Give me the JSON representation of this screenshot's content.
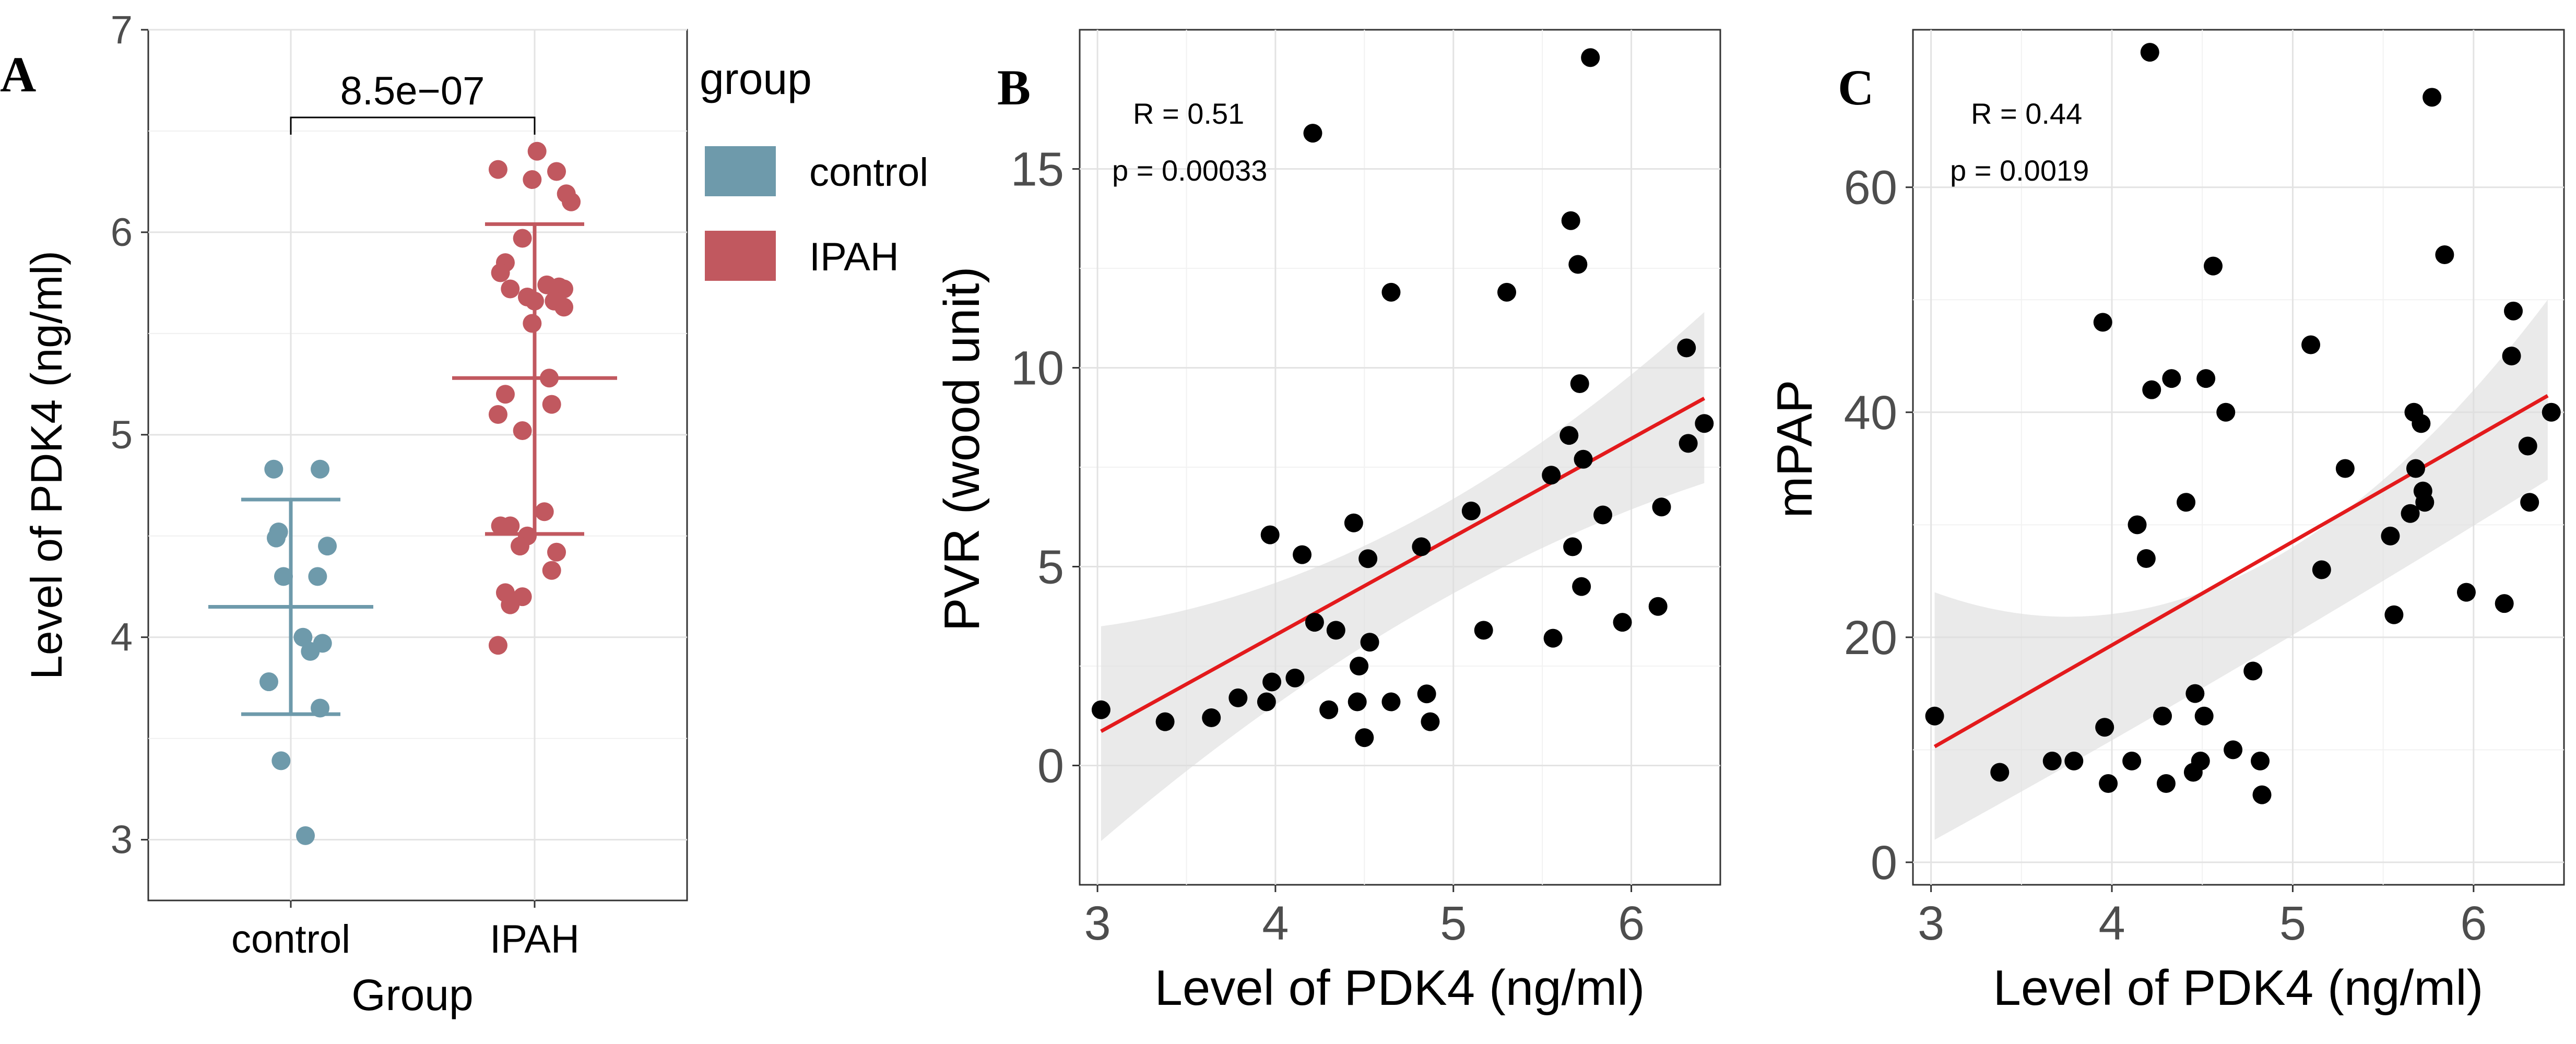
{
  "chart_data": [
    {
      "panel": "A",
      "type": "scatter",
      "xlabel": "Group",
      "ylabel": "Level of PDK4 (ng/ml)",
      "categories": [
        "control",
        "IPAH"
      ],
      "ylim": [
        2.7,
        7.0
      ],
      "yticks": [
        3,
        4,
        5,
        6,
        7
      ],
      "significance": "8.5e−07",
      "legend": {
        "title": "group",
        "position": "right",
        "items": [
          {
            "label": "control",
            "color": "#6e9aab"
          },
          {
            "label": "IPAH",
            "color": "#c1585f"
          }
        ]
      },
      "series": [
        {
          "name": "control",
          "color": "#6e9aab",
          "mean": 4.15,
          "lower": 3.62,
          "upper": 4.68,
          "points": [
            {
              "x": -0.07,
              "y": 4.83
            },
            {
              "x": 0.12,
              "y": 4.83
            },
            {
              "x": -0.05,
              "y": 4.52
            },
            {
              "x": -0.06,
              "y": 4.49
            },
            {
              "x": 0.15,
              "y": 4.45
            },
            {
              "x": -0.03,
              "y": 4.3
            },
            {
              "x": 0.11,
              "y": 4.3
            },
            {
              "x": 0.05,
              "y": 4.0
            },
            {
              "x": 0.13,
              "y": 3.97
            },
            {
              "x": 0.08,
              "y": 3.93
            },
            {
              "x": -0.09,
              "y": 3.78
            },
            {
              "x": 0.12,
              "y": 3.65
            },
            {
              "x": -0.04,
              "y": 3.39
            },
            {
              "x": 0.06,
              "y": 3.02
            }
          ]
        },
        {
          "name": "IPAH",
          "color": "#c1585f",
          "mean": 5.28,
          "lower": 4.51,
          "upper": 6.04,
          "points": [
            {
              "x": 0.01,
              "y": 6.4
            },
            {
              "x": -0.15,
              "y": 6.31
            },
            {
              "x": 0.09,
              "y": 6.3
            },
            {
              "x": -0.01,
              "y": 6.26
            },
            {
              "x": 0.13,
              "y": 6.19
            },
            {
              "x": 0.15,
              "y": 6.15
            },
            {
              "x": -0.05,
              "y": 5.97
            },
            {
              "x": -0.12,
              "y": 5.85
            },
            {
              "x": -0.14,
              "y": 5.8
            },
            {
              "x": 0.05,
              "y": 5.74
            },
            {
              "x": 0.1,
              "y": 5.73
            },
            {
              "x": -0.1,
              "y": 5.72
            },
            {
              "x": 0.12,
              "y": 5.72
            },
            {
              "x": -0.03,
              "y": 5.68
            },
            {
              "x": 0.0,
              "y": 5.66
            },
            {
              "x": 0.08,
              "y": 5.66
            },
            {
              "x": 0.12,
              "y": 5.63
            },
            {
              "x": -0.01,
              "y": 5.55
            },
            {
              "x": 0.06,
              "y": 5.28
            },
            {
              "x": -0.12,
              "y": 5.2
            },
            {
              "x": 0.07,
              "y": 5.15
            },
            {
              "x": -0.15,
              "y": 5.1
            },
            {
              "x": -0.05,
              "y": 5.02
            },
            {
              "x": 0.04,
              "y": 4.62
            },
            {
              "x": -0.14,
              "y": 4.55
            },
            {
              "x": -0.1,
              "y": 4.55
            },
            {
              "x": -0.03,
              "y": 4.5
            },
            {
              "x": -0.06,
              "y": 4.45
            },
            {
              "x": 0.09,
              "y": 4.42
            },
            {
              "x": 0.07,
              "y": 4.33
            },
            {
              "x": -0.12,
              "y": 4.22
            },
            {
              "x": -0.05,
              "y": 4.2
            },
            {
              "x": -0.1,
              "y": 4.16
            },
            {
              "x": -0.15,
              "y": 3.96
            }
          ]
        }
      ]
    },
    {
      "panel": "B",
      "type": "scatter",
      "xlabel": "Level of PDK4 (ng/ml)",
      "ylabel": "PVR (wood unit)",
      "xlim": [
        2.9,
        6.5
      ],
      "ylim": [
        -3,
        18.5
      ],
      "xticks": [
        3,
        4,
        5,
        6
      ],
      "yticks": [
        0,
        5,
        10,
        15
      ],
      "stats": {
        "R": "R = 0.51",
        "p": "p = 0.00033"
      },
      "fit": {
        "intercept": -6.6,
        "slope": 2.47,
        "ci_left": [
          -1.9,
          3.5
        ],
        "ci_mid": [
          3.6,
          6.0
        ],
        "ci_right": [
          7.1,
          11.4
        ]
      },
      "points": [
        [
          3.02,
          1.4
        ],
        [
          3.38,
          1.1
        ],
        [
          3.64,
          1.2
        ],
        [
          3.79,
          1.7
        ],
        [
          3.95,
          1.6
        ],
        [
          3.97,
          5.8
        ],
        [
          3.98,
          2.1
        ],
        [
          4.11,
          2.2
        ],
        [
          4.15,
          5.3
        ],
        [
          4.21,
          15.9
        ],
        [
          4.22,
          3.6
        ],
        [
          4.3,
          1.4
        ],
        [
          4.34,
          3.4
        ],
        [
          4.44,
          6.1
        ],
        [
          4.46,
          1.6
        ],
        [
          4.47,
          2.5
        ],
        [
          4.5,
          0.7
        ],
        [
          4.52,
          5.2
        ],
        [
          4.53,
          3.1
        ],
        [
          4.65,
          1.6
        ],
        [
          4.65,
          11.9
        ],
        [
          4.82,
          5.5
        ],
        [
          4.85,
          1.8
        ],
        [
          4.87,
          1.1
        ],
        [
          5.1,
          6.4
        ],
        [
          5.17,
          3.4
        ],
        [
          5.3,
          11.9
        ],
        [
          5.55,
          7.3
        ],
        [
          5.56,
          3.2
        ],
        [
          5.65,
          8.3
        ],
        [
          5.66,
          13.7
        ],
        [
          5.67,
          5.5
        ],
        [
          5.7,
          12.6
        ],
        [
          5.71,
          9.6
        ],
        [
          5.72,
          4.5
        ],
        [
          5.73,
          7.7
        ],
        [
          5.77,
          17.8
        ],
        [
          5.84,
          6.3
        ],
        [
          5.95,
          3.6
        ],
        [
          6.15,
          4.0
        ],
        [
          6.17,
          6.5
        ],
        [
          6.31,
          10.5
        ],
        [
          6.32,
          8.1
        ],
        [
          6.41,
          8.6
        ]
      ]
    },
    {
      "panel": "C",
      "type": "scatter",
      "xlabel": "Level of PDK4 (ng/ml)",
      "ylabel": "mPAP",
      "xlim": [
        2.9,
        6.5
      ],
      "ylim": [
        -2,
        74
      ],
      "xticks": [
        3,
        4,
        5,
        6
      ],
      "yticks": [
        0,
        20,
        40,
        60
      ],
      "stats": {
        "R": "R = 0.44",
        "p": "p = 0.0019"
      },
      "fit": {
        "intercept": -17.5,
        "slope": 9.2,
        "ci_left": [
          2,
          24
        ],
        "ci_mid": [
          17.5,
          25.5
        ],
        "ci_right": [
          34,
          50
        ]
      },
      "points": [
        [
          3.02,
          13
        ],
        [
          3.38,
          8
        ],
        [
          3.67,
          9
        ],
        [
          3.79,
          9
        ],
        [
          3.95,
          48
        ],
        [
          3.96,
          12
        ],
        [
          3.98,
          7
        ],
        [
          4.11,
          9
        ],
        [
          4.14,
          30
        ],
        [
          4.19,
          27
        ],
        [
          4.21,
          72
        ],
        [
          4.22,
          42
        ],
        [
          4.28,
          13
        ],
        [
          4.3,
          7
        ],
        [
          4.33,
          43
        ],
        [
          4.41,
          32
        ],
        [
          4.45,
          8
        ],
        [
          4.46,
          15
        ],
        [
          4.49,
          9
        ],
        [
          4.51,
          13
        ],
        [
          4.52,
          43
        ],
        [
          4.56,
          53
        ],
        [
          4.63,
          40
        ],
        [
          4.67,
          10
        ],
        [
          4.78,
          17
        ],
        [
          4.82,
          9
        ],
        [
          4.83,
          6
        ],
        [
          5.1,
          46
        ],
        [
          5.16,
          26
        ],
        [
          5.29,
          35
        ],
        [
          5.54,
          29
        ],
        [
          5.56,
          22
        ],
        [
          5.65,
          31
        ],
        [
          5.67,
          40
        ],
        [
          5.68,
          35
        ],
        [
          5.71,
          39
        ],
        [
          5.72,
          33
        ],
        [
          5.73,
          32
        ],
        [
          5.77,
          68
        ],
        [
          5.84,
          54
        ],
        [
          5.96,
          24
        ],
        [
          6.17,
          23
        ],
        [
          6.21,
          45
        ],
        [
          6.22,
          49
        ],
        [
          6.3,
          37
        ],
        [
          6.31,
          32
        ],
        [
          6.43,
          40
        ]
      ]
    }
  ],
  "panel_labels": [
    "A",
    "B",
    "C"
  ]
}
